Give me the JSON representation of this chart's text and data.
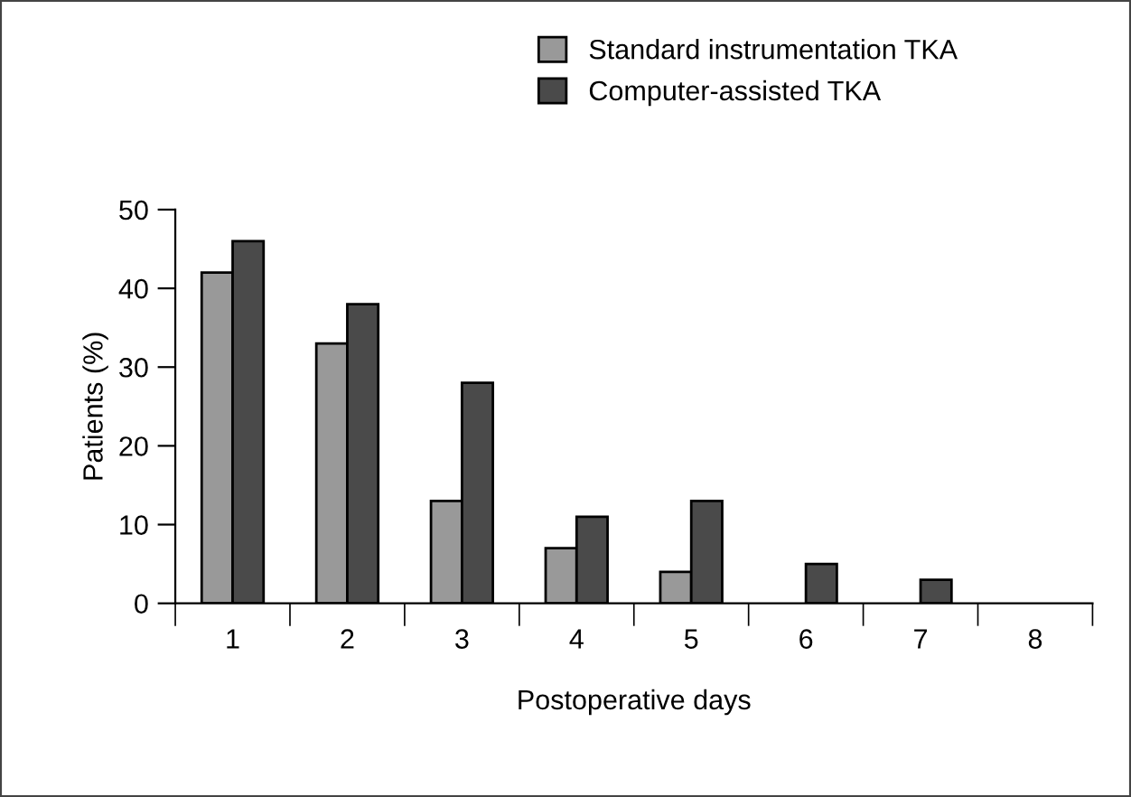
{
  "chart_data": {
    "type": "bar",
    "xlabel": "Postoperative days",
    "ylabel": "Patients (%)",
    "categories": [
      "1",
      "2",
      "3",
      "4",
      "5",
      "6",
      "7",
      "8"
    ],
    "series": [
      {
        "name": "Standard instrumentation TKA",
        "color": "#999999",
        "values": [
          42,
          33,
          13,
          7,
          4,
          null,
          null,
          null
        ]
      },
      {
        "name": "Computer-assisted TKA",
        "color": "#4a4a4a",
        "values": [
          46,
          38,
          28,
          11,
          13,
          5,
          3,
          null
        ]
      }
    ],
    "ylim": [
      0,
      50
    ],
    "yticks": [
      0,
      10,
      20,
      30,
      40,
      50
    ],
    "grid": false,
    "legend": "top right"
  }
}
